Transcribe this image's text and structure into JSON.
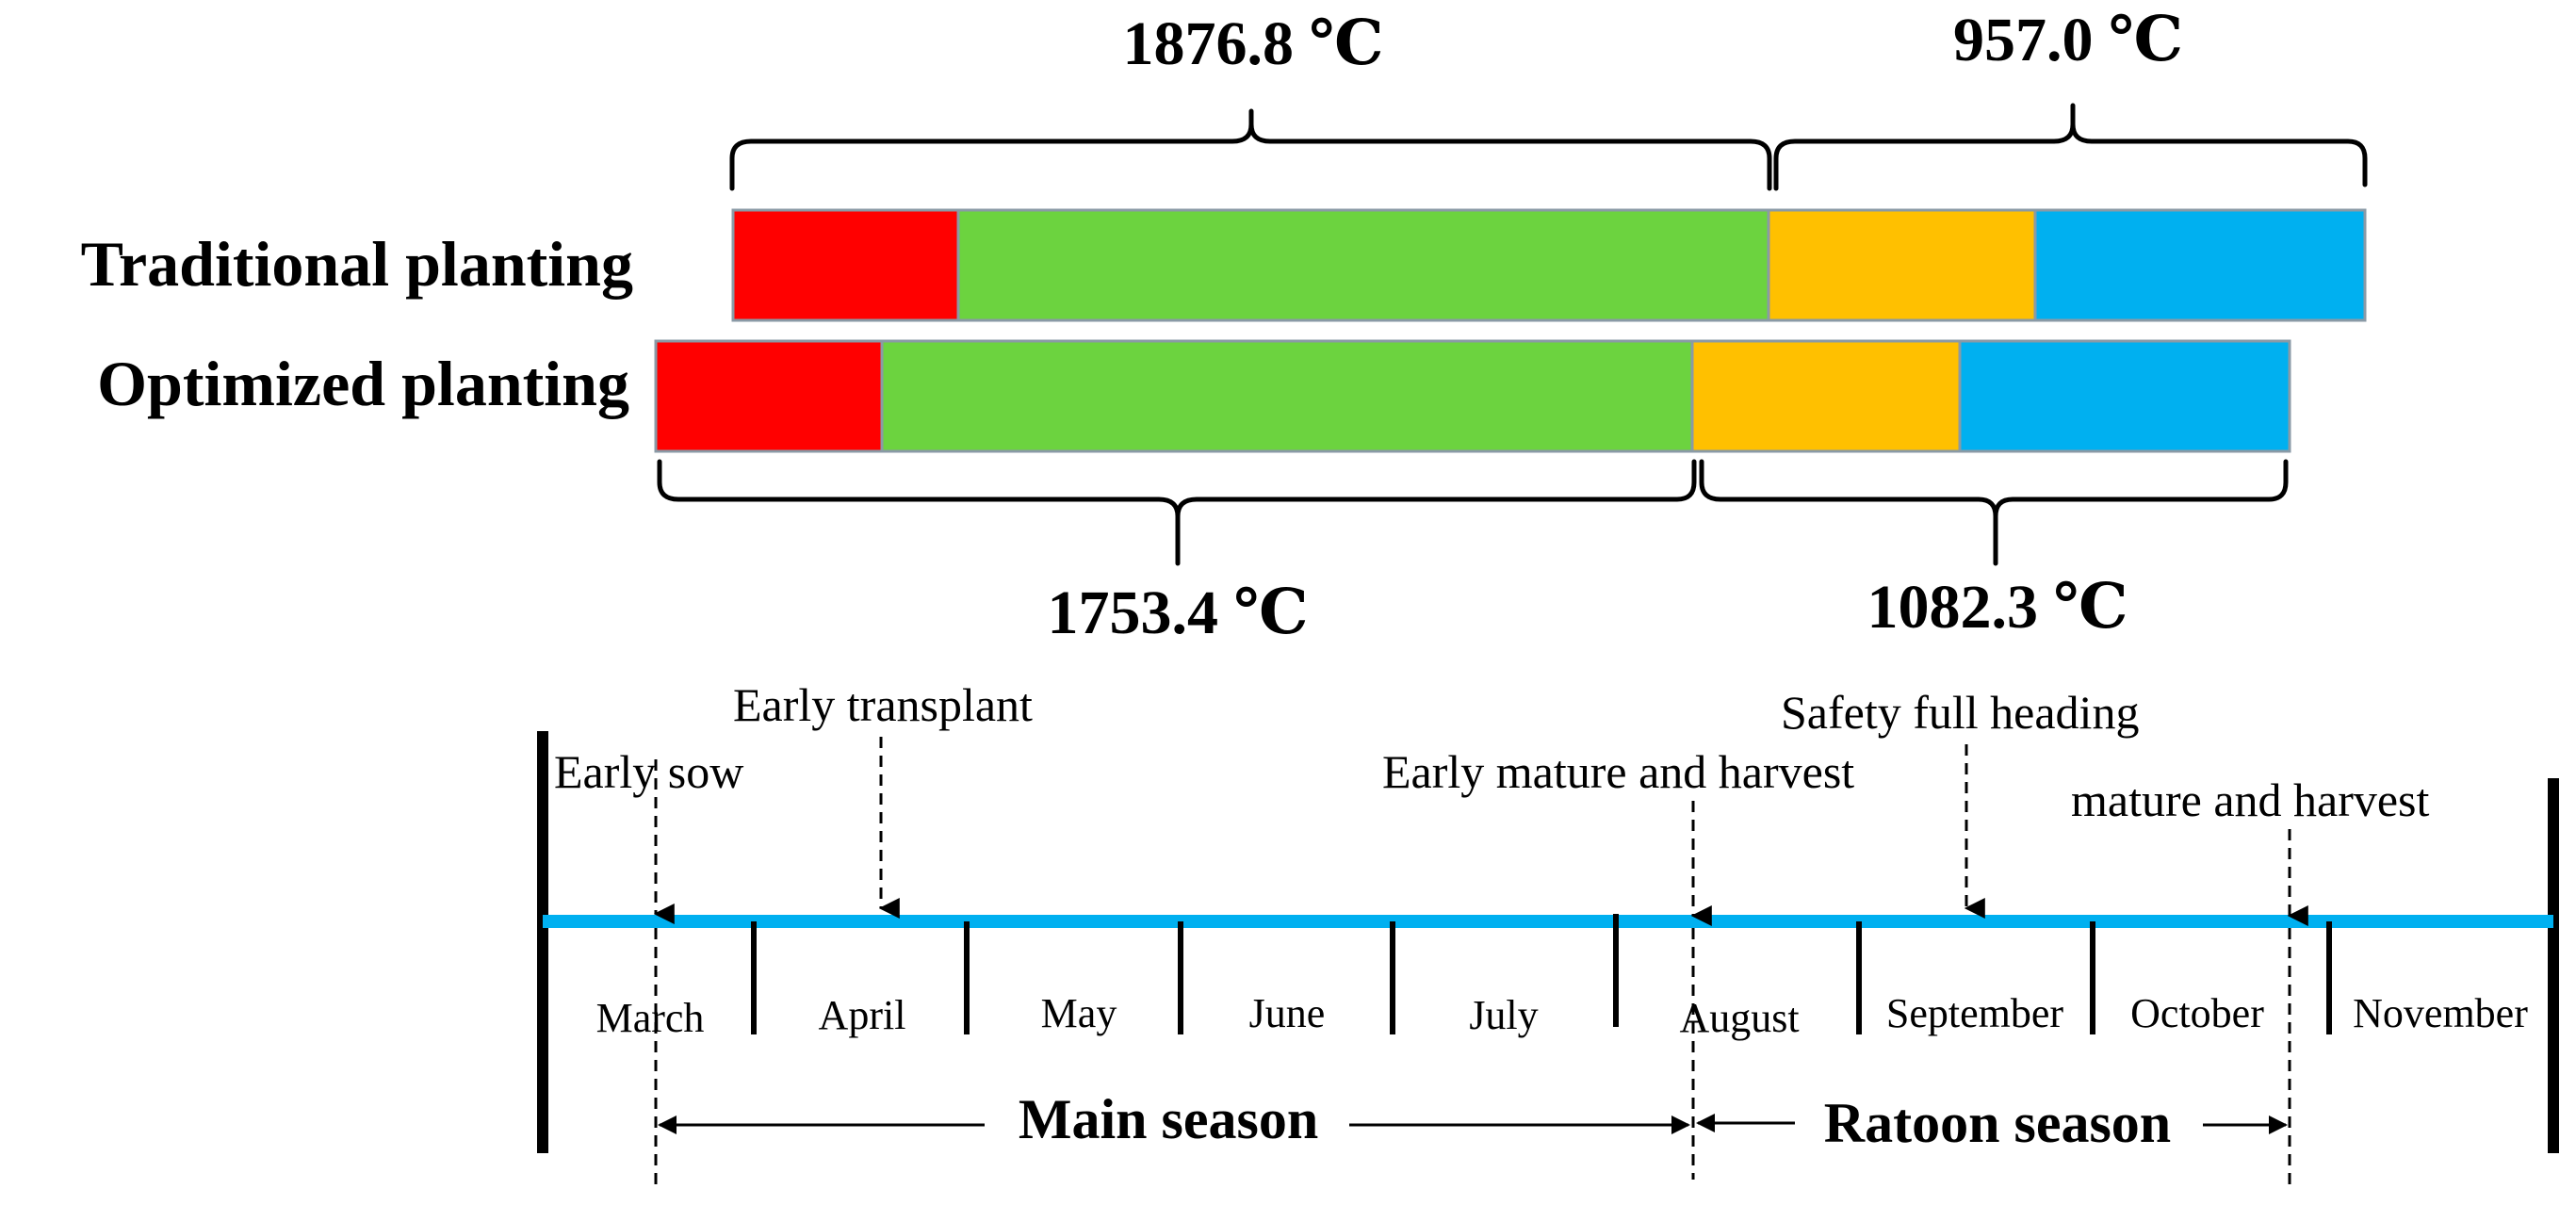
{
  "rows": [
    {
      "label": "Traditional planting",
      "segments": [
        {
          "stage": "stage-1",
          "color": "#ff0000"
        },
        {
          "stage": "stage-2",
          "color": "#6cd33f"
        },
        {
          "stage": "stage-3",
          "color": "#ffc000"
        },
        {
          "stage": "stage-4",
          "color": "#00b0f0"
        }
      ],
      "main_season_total": "1876.8 ℃",
      "ratoon_season_total": "957.0 ℃"
    },
    {
      "label": "Optimized planting",
      "segments": [
        {
          "stage": "stage-1",
          "color": "#ff0000"
        },
        {
          "stage": "stage-2",
          "color": "#6cd33f"
        },
        {
          "stage": "stage-3",
          "color": "#ffc000"
        },
        {
          "stage": "stage-4",
          "color": "#00b0f0"
        }
      ],
      "main_season_total": "1753.4 ℃",
      "ratoon_season_total": "1082.3 ℃"
    }
  ],
  "timeline": {
    "line_color": "#00b0f0",
    "months": [
      "March",
      "April",
      "May",
      "June",
      "July",
      "August",
      "September",
      "October",
      "November"
    ],
    "events": {
      "early_sow": "Early sow",
      "early_transplant": "Early transplant",
      "early_mature": "Early mature and harvest",
      "safety_heading": "Safety full heading",
      "mature_harvest": "mature and harvest"
    },
    "seasons": {
      "main": "Main season",
      "ratoon": "Ratoon season"
    }
  }
}
